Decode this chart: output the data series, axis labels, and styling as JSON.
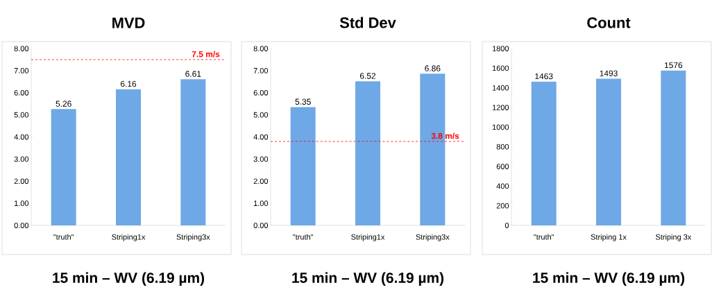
{
  "chart_data": [
    {
      "type": "bar",
      "title": "MVD",
      "xlabel": "15 min – WV (6.19 µm)",
      "categories": [
        "\"truth\"",
        "Striping1x",
        "Striping3x"
      ],
      "values": [
        5.26,
        6.16,
        6.61
      ],
      "value_labels": [
        "5.26",
        "6.16",
        "6.61"
      ],
      "color": "#6fa8e6",
      "ylim": [
        0,
        8
      ],
      "yticks": [
        {
          "value": 0,
          "label": "0.00"
        },
        {
          "value": 1,
          "label": "1.00"
        },
        {
          "value": 2,
          "label": "2.00"
        },
        {
          "value": 3,
          "label": "3.00"
        },
        {
          "value": 4,
          "label": "4.00"
        },
        {
          "value": 5,
          "label": "5.00"
        },
        {
          "value": 6,
          "label": "6.00"
        },
        {
          "value": 7,
          "label": "7.00"
        },
        {
          "value": 8,
          "label": "8.00"
        }
      ],
      "grid": false,
      "ref_lines": [
        {
          "axis": "y",
          "value": 7.5,
          "label": "7.5 m/s",
          "color": "#ff0000",
          "line_style": "dashed"
        }
      ]
    },
    {
      "type": "bar",
      "title": "Std Dev",
      "xlabel": "15 min – WV (6.19 µm)",
      "categories": [
        "\"truth\"",
        "Striping1x",
        "Striping3x"
      ],
      "values": [
        5.35,
        6.52,
        6.86
      ],
      "value_labels": [
        "5.35",
        "6.52",
        "6.86"
      ],
      "color": "#6fa8e6",
      "ylim": [
        0,
        8
      ],
      "yticks": [
        {
          "value": 0,
          "label": "0.00"
        },
        {
          "value": 1,
          "label": "1.00"
        },
        {
          "value": 2,
          "label": "2.00"
        },
        {
          "value": 3,
          "label": "3.00"
        },
        {
          "value": 4,
          "label": "4.00"
        },
        {
          "value": 5,
          "label": "5.00"
        },
        {
          "value": 6,
          "label": "6.00"
        },
        {
          "value": 7,
          "label": "7.00"
        },
        {
          "value": 8,
          "label": "8.00"
        }
      ],
      "grid": false,
      "ref_lines": [
        {
          "axis": "y",
          "value": 3.8,
          "label": "3.8 m/s",
          "color": "#ff0000",
          "line_style": "dashed"
        }
      ]
    },
    {
      "type": "bar",
      "title": "Count",
      "xlabel": "15 min – WV (6.19 µm)",
      "categories": [
        "\"truth\"",
        "Striping 1x",
        "Striping 3x"
      ],
      "values": [
        1463,
        1493,
        1576
      ],
      "value_labels": [
        "1463",
        "1493",
        "1576"
      ],
      "color": "#6fa8e6",
      "ylim": [
        0,
        1800
      ],
      "yticks": [
        0,
        200,
        400,
        600,
        800,
        1000,
        1200,
        1400,
        1600,
        1800
      ],
      "grid": false
    }
  ]
}
